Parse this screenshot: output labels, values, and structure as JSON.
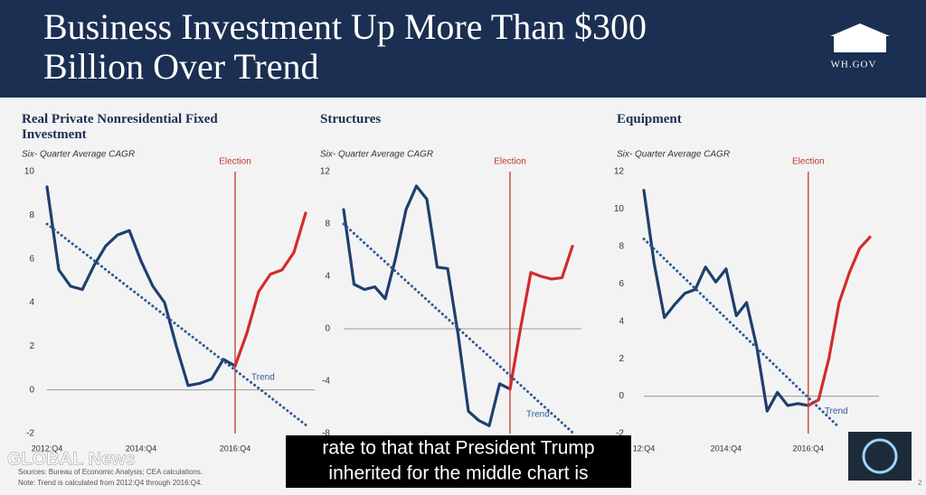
{
  "header": {
    "title_lines": [
      "Business Investment Up More Than $300",
      "Billion Over Trend"
    ],
    "logo_text": "WH.GOV"
  },
  "footer": {
    "sources": "Sources: Bureau of Economic Analysis; CEA calculations.",
    "note": "Note: Trend is calculated from 2012:Q4 through 2016:Q4.",
    "watermark": "GLOBAL News",
    "page_number": "2"
  },
  "caption": {
    "lines": [
      "rate to that that President Trump",
      "inherited for the middle chart is"
    ]
  },
  "chart_data": [
    {
      "type": "line",
      "title": "Real Private Nonresidential Fixed Investment",
      "subtitle": "Six- Quarter Average CAGR",
      "categories": [
        "2012:Q4",
        null,
        null,
        null,
        null,
        null,
        null,
        null,
        "2014:Q4",
        null,
        null,
        null,
        null,
        null,
        null,
        null,
        "2016:Q4",
        null,
        null,
        null,
        null,
        null,
        null
      ],
      "series": [
        {
          "color": "#1f3f6e",
          "style": "solid",
          "values": [
            9.3,
            5.5,
            4.75,
            4.6,
            5.7,
            6.6,
            7.1,
            7.3,
            5.9,
            4.75,
            4.0,
            2.0,
            0.2,
            0.3,
            0.5,
            1.4,
            1.1,
            null,
            null,
            null,
            null,
            null,
            null
          ]
        },
        {
          "color": "#d42b2b",
          "style": "solid",
          "values": [
            null,
            null,
            null,
            null,
            null,
            null,
            null,
            null,
            null,
            null,
            null,
            null,
            null,
            null,
            null,
            null,
            1.1,
            2.6,
            4.5,
            5.3,
            5.5,
            6.3,
            8.1
          ]
        },
        {
          "color": "#2e5a94",
          "style": "dotted",
          "values": [
            7.6,
            7.18,
            6.76,
            6.35,
            5.93,
            5.51,
            5.09,
            4.67,
            4.26,
            3.84,
            3.42,
            3.0,
            2.58,
            2.17,
            1.75,
            1.33,
            0.91,
            0.49,
            0.08,
            -0.34,
            -0.76,
            -1.18,
            -1.6
          ]
        }
      ],
      "ylim": [
        -2,
        10
      ],
      "yticks": [
        -2,
        0,
        2,
        4,
        6,
        8,
        10
      ],
      "election": {
        "label": "Election",
        "index": 16
      },
      "trend_label": "Trend"
    },
    {
      "type": "line",
      "title": "Structures",
      "subtitle": "Six- Quarter Average CAGR",
      "categories": [
        null,
        null,
        null,
        null,
        null,
        null,
        null,
        null,
        null,
        null,
        null,
        null,
        null,
        null,
        null,
        null,
        null,
        null,
        null,
        null,
        null,
        null,
        null
      ],
      "series": [
        {
          "color": "#1f3f6e",
          "style": "solid",
          "values": [
            9.1,
            3.4,
            3.0,
            3.2,
            2.3,
            5.4,
            9.1,
            10.9,
            9.9,
            4.7,
            4.6,
            -0.4,
            -6.3,
            -7.0,
            -7.4,
            -4.2,
            -4.6,
            null,
            null,
            null,
            null,
            null,
            null
          ]
        },
        {
          "color": "#d42b2b",
          "style": "solid",
          "values": [
            null,
            null,
            null,
            null,
            null,
            null,
            null,
            null,
            null,
            null,
            null,
            null,
            null,
            null,
            null,
            null,
            -4.6,
            0,
            4.3,
            4.0,
            3.8,
            3.9,
            6.3
          ]
        },
        {
          "color": "#2e5a94",
          "style": "dotted",
          "values": [
            8.0,
            7.28,
            6.55,
            5.83,
            5.11,
            4.38,
            3.66,
            2.94,
            2.22,
            1.49,
            0.77,
            0.05,
            -0.68,
            -1.4,
            -2.12,
            -2.84,
            -3.57,
            -4.29,
            -5.01,
            -5.74,
            -6.46,
            -7.18,
            -7.91
          ]
        }
      ],
      "ylim": [
        -8,
        12
      ],
      "yticks": [
        -8,
        -4,
        0,
        4,
        8,
        12
      ],
      "election": {
        "label": "Election",
        "index": 16
      },
      "trend_label": "Trend"
    },
    {
      "type": "line",
      "title": "Equipment",
      "subtitle": "Six- Quarter Average CAGR",
      "categories": [
        "12:Q4",
        null,
        null,
        null,
        null,
        null,
        null,
        null,
        "2014:Q4",
        null,
        null,
        null,
        null,
        null,
        null,
        null,
        "2016:Q4",
        null,
        null,
        null,
        null,
        null,
        null
      ],
      "series": [
        {
          "color": "#1f3f6e",
          "style": "solid",
          "values": [
            11.0,
            7.1,
            4.2,
            4.9,
            5.5,
            5.7,
            6.9,
            6.1,
            6.8,
            4.3,
            5.0,
            2.6,
            -0.8,
            0.2,
            -0.5,
            -0.4,
            -0.5,
            null,
            null,
            null,
            null,
            null,
            null
          ]
        },
        {
          "color": "#d42b2b",
          "style": "solid",
          "values": [
            null,
            null,
            null,
            null,
            null,
            null,
            null,
            null,
            null,
            null,
            null,
            null,
            null,
            null,
            null,
            null,
            -0.5,
            -0.2,
            2.0,
            5.0,
            6.6,
            7.9,
            8.5
          ]
        },
        {
          "color": "#2e5a94",
          "style": "dotted",
          "values": [
            8.4,
            7.87,
            7.34,
            6.81,
            6.28,
            5.75,
            5.22,
            4.69,
            4.16,
            3.63,
            3.1,
            2.57,
            2.04,
            1.51,
            0.98,
            0.45,
            -0.08,
            -0.61,
            -1.14,
            -1.67,
            null,
            null,
            null
          ]
        }
      ],
      "ylim": [
        -2,
        12
      ],
      "yticks": [
        -2,
        0,
        2,
        4,
        6,
        8,
        10,
        12
      ],
      "election": {
        "label": "Election",
        "index": 16
      },
      "trend_label": "Trend"
    }
  ]
}
